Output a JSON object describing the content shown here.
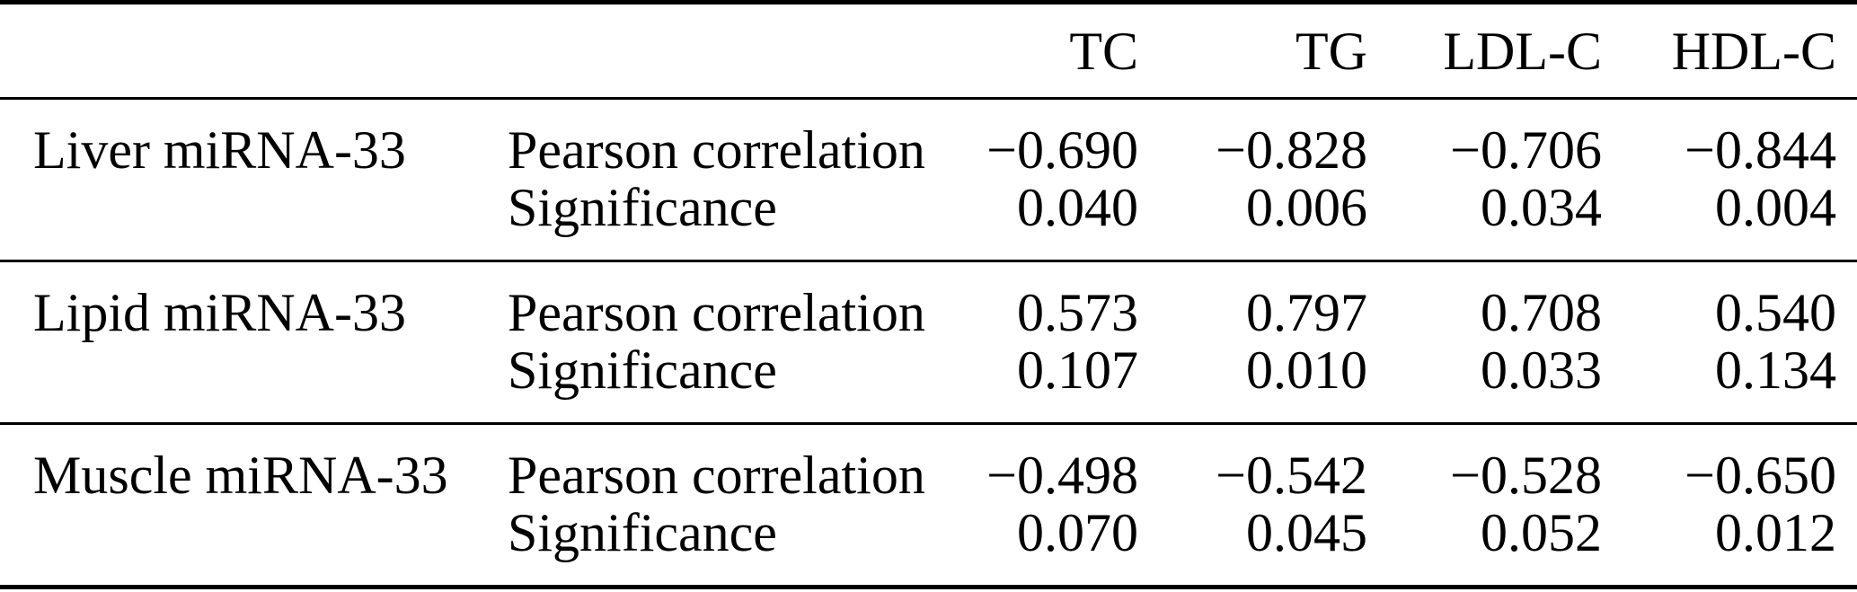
{
  "table": {
    "columns": [
      "TC",
      "TG",
      "LDL-C",
      "HDL-C"
    ],
    "stat_labels": [
      "Pearson correlation",
      "Significance"
    ],
    "groups": [
      {
        "label": "Liver miRNA-33",
        "pearson": [
          "−0.690",
          "−0.828",
          "−0.706",
          "−0.844"
        ],
        "significance": [
          "0.040",
          "0.006",
          "0.034",
          "0.004"
        ]
      },
      {
        "label": "Lipid miRNA-33",
        "pearson": [
          "0.573",
          "0.797",
          "0.708",
          "0.540"
        ],
        "significance": [
          "0.107",
          "0.010",
          "0.033",
          "0.134"
        ]
      },
      {
        "label": "Muscle miRNA-33",
        "pearson": [
          "−0.498",
          "−0.542",
          "−0.528",
          "−0.650"
        ],
        "significance": [
          "0.070",
          "0.045",
          "0.052",
          "0.012"
        ]
      }
    ]
  }
}
